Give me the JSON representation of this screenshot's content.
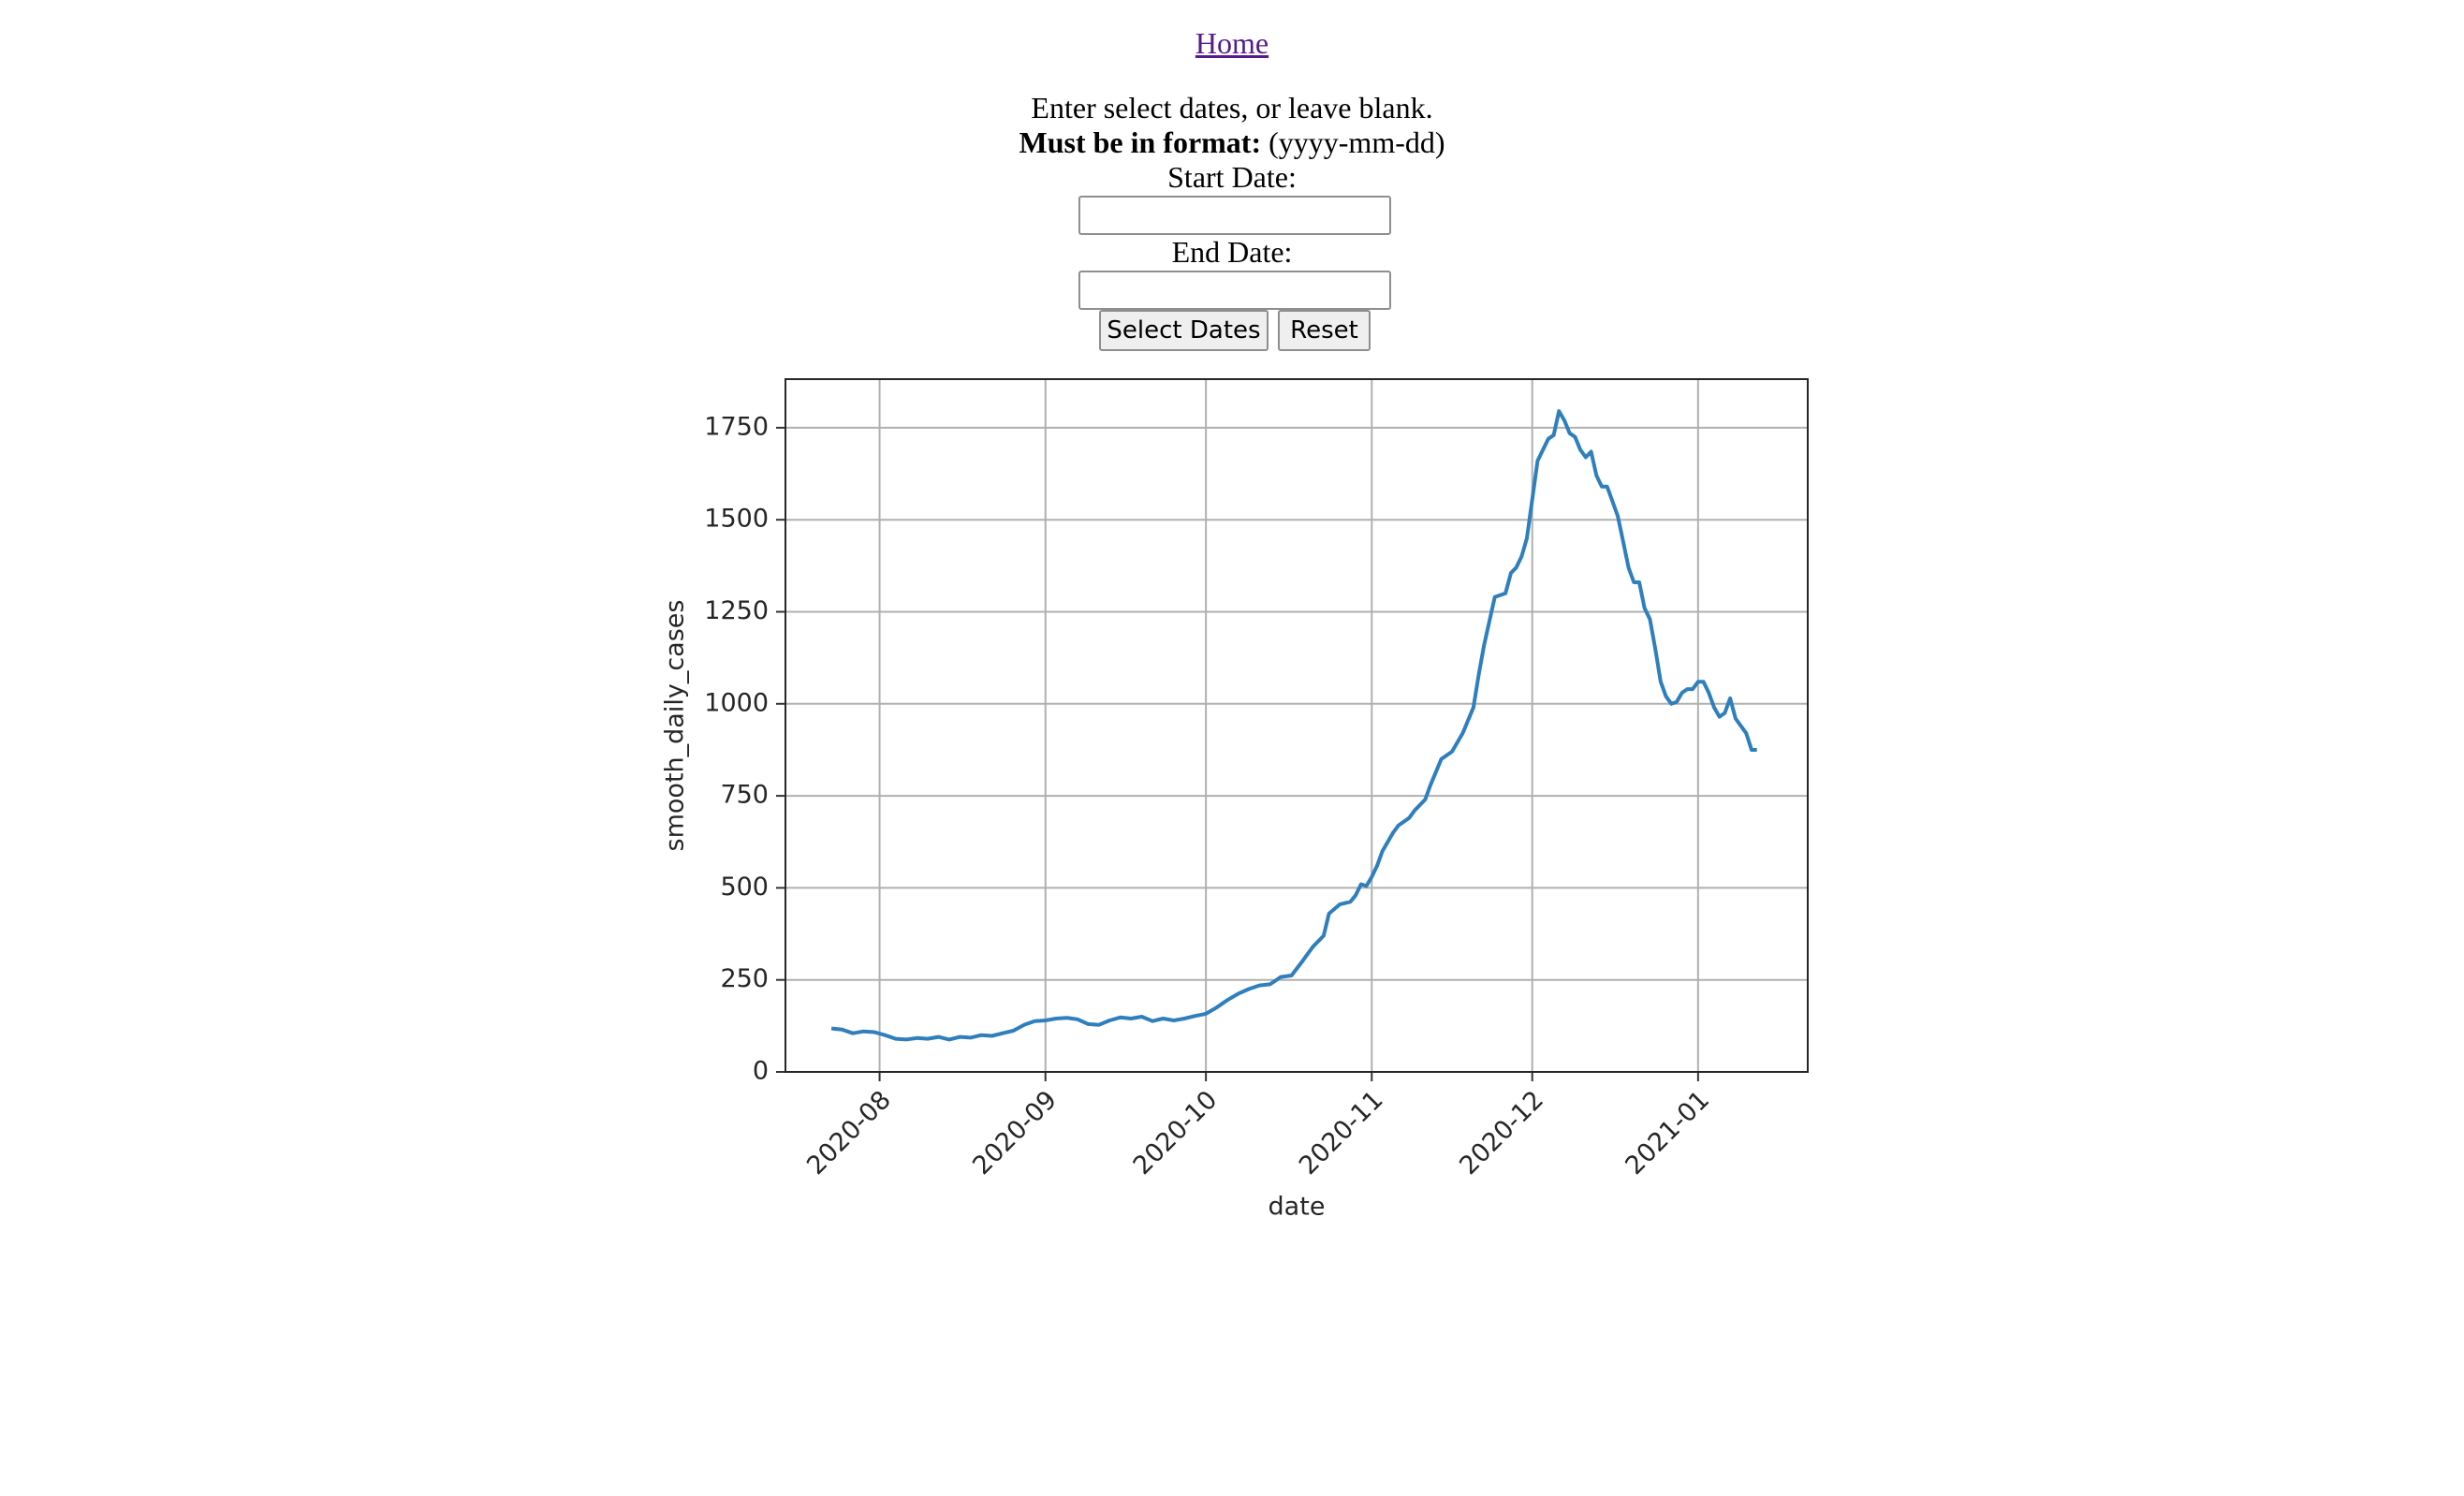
{
  "nav": {
    "home": "Home"
  },
  "form": {
    "instructions": "Enter select dates, or leave blank.",
    "format_label": "Must be in format:",
    "format_value": "(yyyy-mm-dd)",
    "start_label": "Start Date:",
    "end_label": "End Date:",
    "submit": "Select Dates",
    "reset": "Reset"
  },
  "chart_data": {
    "type": "line",
    "x_label": "date",
    "y_label": "smooth_daily_cases",
    "color": "#2f7fbd",
    "grid": true,
    "x": [
      -9,
      -7,
      -5,
      -3,
      -1,
      1,
      3,
      5,
      7,
      9,
      11,
      13,
      15,
      17,
      19,
      21,
      23,
      25,
      27,
      29,
      31,
      33,
      35,
      37,
      39,
      41,
      43,
      45,
      47,
      49,
      51,
      53,
      55,
      57,
      59,
      61,
      63,
      65,
      67,
      69,
      71,
      73,
      75,
      77,
      79,
      81,
      83,
      84,
      86,
      88,
      89,
      90,
      91,
      92,
      93,
      94,
      96,
      97,
      99,
      100,
      102,
      103,
      105,
      107,
      109,
      111,
      112,
      113,
      115,
      116,
      117,
      118,
      119,
      120,
      121,
      123,
      125,
      126,
      127,
      128,
      129,
      130,
      131,
      132,
      133,
      134,
      135,
      136,
      137,
      138,
      139,
      140,
      141,
      142,
      143,
      144,
      145,
      146,
      147,
      148,
      149,
      150,
      151,
      152,
      153,
      154,
      155,
      156,
      157,
      158,
      159,
      160,
      161,
      162,
      163,
      164
    ],
    "values": [
      118,
      115,
      105,
      110,
      108,
      100,
      90,
      88,
      92,
      90,
      95,
      88,
      95,
      93,
      100,
      98,
      105,
      112,
      128,
      138,
      140,
      145,
      147,
      143,
      130,
      128,
      140,
      148,
      145,
      150,
      138,
      145,
      140,
      145,
      152,
      158,
      175,
      195,
      212,
      225,
      235,
      238,
      258,
      262,
      300,
      340,
      370,
      430,
      455,
      462,
      480,
      510,
      505,
      530,
      560,
      600,
      650,
      670,
      690,
      710,
      740,
      780,
      850,
      870,
      920,
      990,
      1080,
      1160,
      1290,
      1295,
      1300,
      1355,
      1370,
      1400,
      1450,
      1660,
      1720,
      1730,
      1795,
      1770,
      1735,
      1725,
      1690,
      1670,
      1685,
      1620,
      1590,
      1590,
      1550,
      1510,
      1440,
      1370,
      1330,
      1330,
      1260,
      1230,
      1150,
      1060,
      1020,
      1000,
      1005,
      1030,
      1040,
      1040,
      1060,
      1060,
      1030,
      990,
      965,
      975,
      1015,
      960,
      940,
      920,
      875,
      875
    ],
    "xlim": [
      -17.6,
      173.5
    ],
    "xticks": [
      {
        "value": 0,
        "label": "2020-08"
      },
      {
        "value": 31,
        "label": "2020-09"
      },
      {
        "value": 61,
        "label": "2020-10"
      },
      {
        "value": 92,
        "label": "2020-11"
      },
      {
        "value": 122,
        "label": "2020-12"
      },
      {
        "value": 153,
        "label": "2021-01"
      }
    ],
    "ylim": [
      0,
      1882
    ],
    "yticks": [
      0,
      250,
      500,
      750,
      1000,
      1250,
      1500,
      1750
    ]
  }
}
